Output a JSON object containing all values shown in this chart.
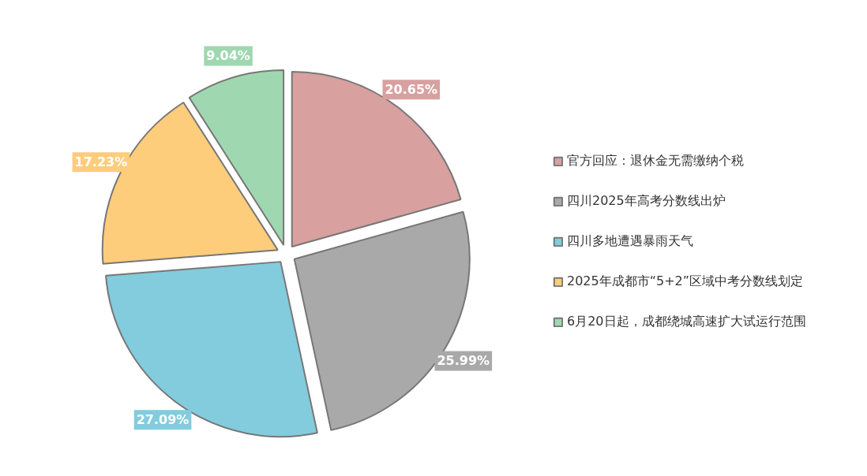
{
  "chart_data": {
    "type": "pie",
    "categories": [
      "官方回应：退休金无需缴纳个税",
      "四川2025年高考分数线出炉",
      "四川多地遭遇暴雨天气",
      "2025年成都市“5+2”区域中考分数线划定",
      "6月20日起，成都绕城高速扩大试运行范围"
    ],
    "values": [
      20.65,
      25.99,
      27.09,
      17.23,
      9.04
    ],
    "colors": [
      "#d9a0a0",
      "#a9a9a9",
      "#82ccdd",
      "#fdcd7b",
      "#9fd8b0"
    ],
    "value_labels": [
      "20.65%",
      "25.99%",
      "27.09%",
      "17.23%",
      "9.04%"
    ],
    "legend": "right"
  }
}
